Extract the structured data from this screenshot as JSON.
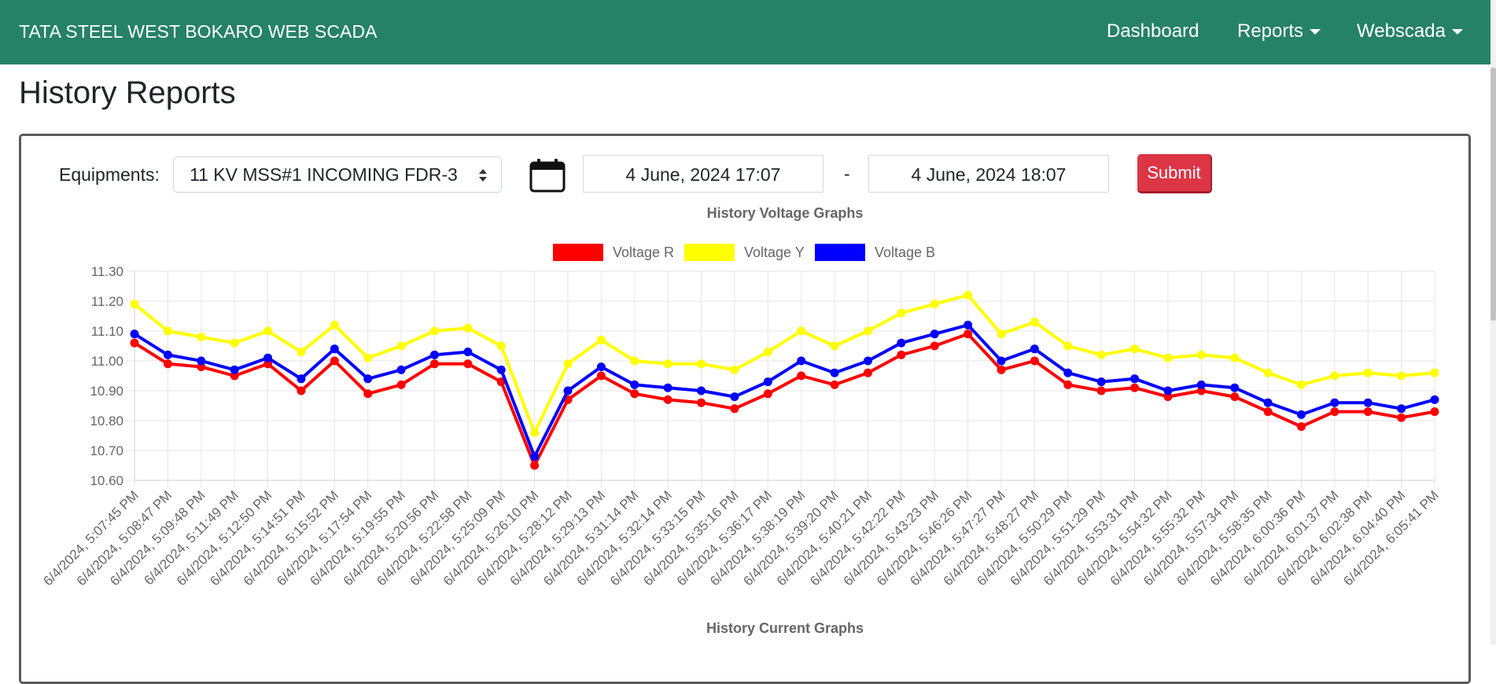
{
  "navbar": {
    "brand": "TATA STEEL WEST BOKARO WEB SCADA",
    "items": [
      {
        "label": "Dashboard",
        "dropdown": false
      },
      {
        "label": "Reports",
        "dropdown": true
      },
      {
        "label": "Webscada",
        "dropdown": true
      }
    ],
    "bg_color": "#268264"
  },
  "page": {
    "title": "History Reports"
  },
  "form": {
    "equipments_label": "Equipments:",
    "equipment_selected": "11 KV MSS#1 INCOMING FDR-3",
    "calendar_icon": "calendar-icon",
    "from_date": "4 June, 2024 17:07",
    "separator": "-",
    "to_date": "4 June, 2024 18:07",
    "submit_label": "Submit",
    "submit_color": "#dc3545"
  },
  "chart_data": {
    "type": "line",
    "title": "History Voltage Graphs",
    "legend_position": "top",
    "grid": true,
    "ylim": [
      10.6,
      11.3
    ],
    "yticks": [
      "10.60",
      "10.70",
      "10.80",
      "10.90",
      "11.00",
      "11.10",
      "11.20",
      "11.30"
    ],
    "categories": [
      "6/4/2024, 5:07:45 PM",
      "6/4/2024, 5:08:47 PM",
      "6/4/2024, 5:09:48 PM",
      "6/4/2024, 5:11:49 PM",
      "6/4/2024, 5:12:50 PM",
      "6/4/2024, 5:14:51 PM",
      "6/4/2024, 5:15:52 PM",
      "6/4/2024, 5:17:54 PM",
      "6/4/2024, 5:19:55 PM",
      "6/4/2024, 5:20:56 PM",
      "6/4/2024, 5:22:58 PM",
      "6/4/2024, 5:25:09 PM",
      "6/4/2024, 5:26:10 PM",
      "6/4/2024, 5:28:12 PM",
      "6/4/2024, 5:29:13 PM",
      "6/4/2024, 5:31:14 PM",
      "6/4/2024, 5:32:14 PM",
      "6/4/2024, 5:33:15 PM",
      "6/4/2024, 5:35:16 PM",
      "6/4/2024, 5:36:17 PM",
      "6/4/2024, 5:38:19 PM",
      "6/4/2024, 5:39:20 PM",
      "6/4/2024, 5:40:21 PM",
      "6/4/2024, 5:42:22 PM",
      "6/4/2024, 5:43:23 PM",
      "6/4/2024, 5:46:26 PM",
      "6/4/2024, 5:47:27 PM",
      "6/4/2024, 5:48:27 PM",
      "6/4/2024, 5:50:29 PM",
      "6/4/2024, 5:51:29 PM",
      "6/4/2024, 5:53:31 PM",
      "6/4/2024, 5:54:32 PM",
      "6/4/2024, 5:55:32 PM",
      "6/4/2024, 5:57:34 PM",
      "6/4/2024, 5:58:35 PM",
      "6/4/2024, 6:00:36 PM",
      "6/4/2024, 6:01:37 PM",
      "6/4/2024, 6:02:38 PM",
      "6/4/2024, 6:04:40 PM",
      "6/4/2024, 6:05:41 PM"
    ],
    "series": [
      {
        "name": "Voltage R",
        "color": "#ff0000",
        "values": [
          11.06,
          10.99,
          10.98,
          10.95,
          10.99,
          10.9,
          11.0,
          10.89,
          10.92,
          10.99,
          10.99,
          10.93,
          10.65,
          10.87,
          10.95,
          10.89,
          10.87,
          10.86,
          10.84,
          10.89,
          10.95,
          10.92,
          10.96,
          11.02,
          11.05,
          11.09,
          10.97,
          11.0,
          10.92,
          10.9,
          10.91,
          10.88,
          10.9,
          10.88,
          10.83,
          10.78,
          10.83,
          10.83,
          10.81,
          10.83
        ]
      },
      {
        "name": "Voltage Y",
        "color": "#ffff00",
        "values": [
          11.19,
          11.1,
          11.08,
          11.06,
          11.1,
          11.03,
          11.12,
          11.01,
          11.05,
          11.1,
          11.11,
          11.05,
          10.76,
          10.99,
          11.07,
          11.0,
          10.99,
          10.99,
          10.97,
          11.03,
          11.1,
          11.05,
          11.1,
          11.16,
          11.19,
          11.22,
          11.09,
          11.13,
          11.05,
          11.02,
          11.04,
          11.01,
          11.02,
          11.01,
          10.96,
          10.92,
          10.95,
          10.96,
          10.95,
          10.96
        ]
      },
      {
        "name": "Voltage B",
        "color": "#0000ff",
        "values": [
          11.09,
          11.02,
          11.0,
          10.97,
          11.01,
          10.94,
          11.04,
          10.94,
          10.97,
          11.02,
          11.03,
          10.97,
          10.68,
          10.9,
          10.98,
          10.92,
          10.91,
          10.9,
          10.88,
          10.93,
          11.0,
          10.96,
          11.0,
          11.06,
          11.09,
          11.12,
          11.0,
          11.04,
          10.96,
          10.93,
          10.94,
          10.9,
          10.92,
          10.91,
          10.86,
          10.82,
          10.86,
          10.86,
          10.84,
          10.87
        ]
      }
    ]
  },
  "second_chart": {
    "title": "History Current Graphs"
  }
}
